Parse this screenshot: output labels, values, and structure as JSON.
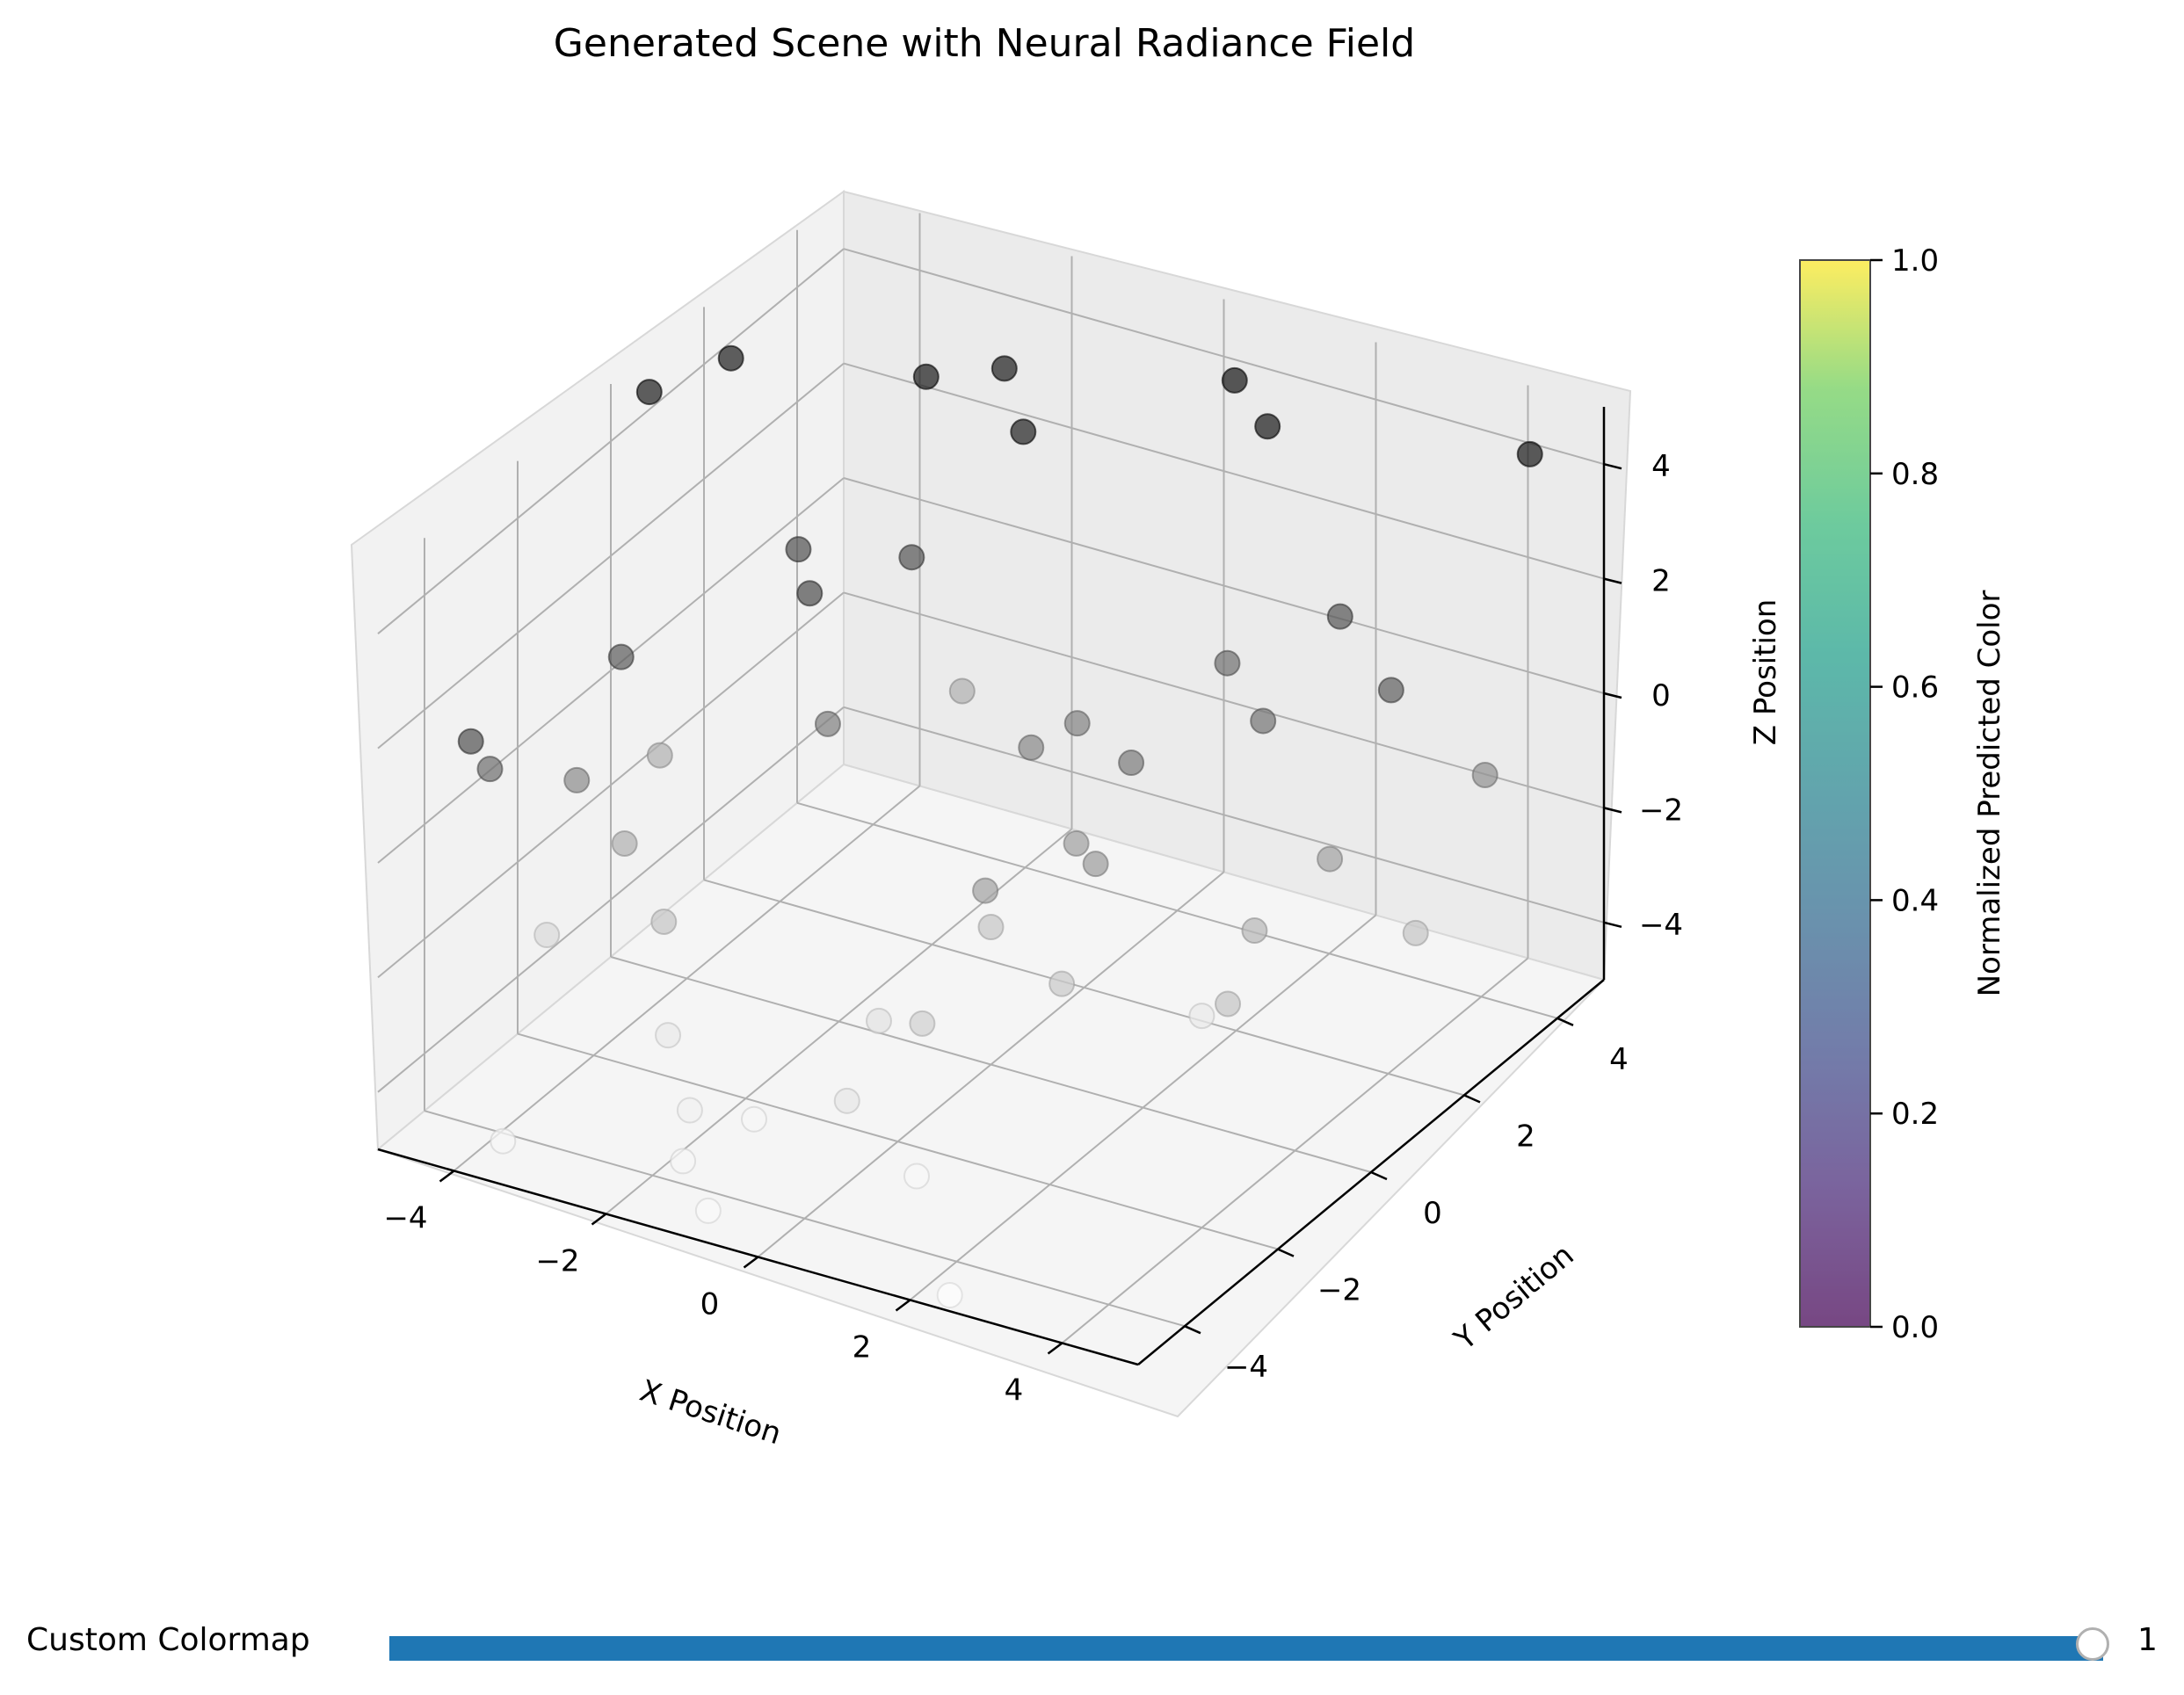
{
  "chart_data": {
    "type": "scatter3d",
    "title": "Generated Scene with Neural Radiance Field",
    "xlabel": "X Position",
    "ylabel": "Y Position",
    "zlabel": "Z Position",
    "xlim": [
      -5,
      5
    ],
    "ylim": [
      -5,
      5
    ],
    "zlim": [
      -5,
      5
    ],
    "xticks": [
      -4,
      -2,
      0,
      2,
      4
    ],
    "yticks": [
      -4,
      -2,
      0,
      2,
      4
    ],
    "zticks": [
      -4,
      -2,
      0,
      2,
      4
    ],
    "grid": true,
    "marker_color_encoding": "grayscale by z (dark = high z)",
    "points": [
      {
        "x": -4.8,
        "y": 0.5,
        "z": 4.6
      },
      {
        "x": -4.4,
        "y": 1.6,
        "z": 4.6
      },
      {
        "x": -2.2,
        "y": 2.2,
        "z": 4.7
      },
      {
        "x": -1.6,
        "y": 2.9,
        "z": 4.6
      },
      {
        "x": -0.8,
        "y": 2.0,
        "z": 4.4
      },
      {
        "x": 1.0,
        "y": 3.6,
        "z": 4.9
      },
      {
        "x": 1.8,
        "y": 3.0,
        "z": 4.8
      },
      {
        "x": 4.7,
        "y": 3.9,
        "z": 4.8
      },
      {
        "x": 3.0,
        "y": 2.6,
        "z": 2.2
      },
      {
        "x": 4.1,
        "y": 1.9,
        "z": 1.8
      },
      {
        "x": 1.7,
        "y": 2.3,
        "z": 1.1
      },
      {
        "x": 2.6,
        "y": 1.6,
        "z": 0.9
      },
      {
        "x": 4.6,
        "y": 3.1,
        "z": -0.3
      },
      {
        "x": 3.6,
        "y": 1.4,
        "z": -1.0
      },
      {
        "x": -3.9,
        "y": -4.8,
        "z": 2.4
      },
      {
        "x": -3.7,
        "y": -1.9,
        "z": 2.0
      },
      {
        "x": -2.9,
        "y": 0.6,
        "z": 2.5
      },
      {
        "x": -2.2,
        "y": -0.3,
        "z": 2.6
      },
      {
        "x": -1.9,
        "y": 1.4,
        "z": 2.2
      },
      {
        "x": -1.9,
        "y": -0.4,
        "z": 0.5
      },
      {
        "x": 0.1,
        "y": 0.7,
        "z": 0.1
      },
      {
        "x": 0.4,
        "y": 1.2,
        "z": 0.3
      },
      {
        "x": 1.6,
        "y": 0.4,
        "z": 0.6
      },
      {
        "x": -4.1,
        "y": -2.2,
        "z": -0.1
      },
      {
        "x": -4.2,
        "y": -3.9,
        "z": 1.2
      },
      {
        "x": 0.6,
        "y": -1.1,
        "z": -1.0
      },
      {
        "x": 1.5,
        "y": -0.2,
        "z": -0.8
      },
      {
        "x": 1.0,
        "y": 0.2,
        "z": -0.9
      },
      {
        "x": 3.1,
        "y": 0.6,
        "z": -1.9
      },
      {
        "x": 4.3,
        "y": 2.1,
        "z": -2.5
      },
      {
        "x": 3.3,
        "y": -0.3,
        "z": -2.5
      },
      {
        "x": -2.4,
        "y": 3.3,
        "z": -1.6
      },
      {
        "x": -4.6,
        "y": 0.4,
        "z": -1.6
      },
      {
        "x": -3.9,
        "y": -1.5,
        "z": -1.6
      },
      {
        "x": -3.2,
        "y": -1.8,
        "z": -2.5
      },
      {
        "x": -4.8,
        "y": -1.7,
        "z": -3.4
      },
      {
        "x": 0.2,
        "y": -1.8,
        "z": -3.0
      },
      {
        "x": 0.0,
        "y": 0.0,
        "z": -2.6
      },
      {
        "x": 1.3,
        "y": -0.6,
        "z": -2.7
      },
      {
        "x": -0.8,
        "y": -1.1,
        "z": -3.8
      },
      {
        "x": -2.9,
        "y": -2.2,
        "z": -4.1
      },
      {
        "x": -2.0,
        "y": -3.2,
        "z": -4.4
      },
      {
        "x": -1.4,
        "y": -2.8,
        "z": -4.6
      },
      {
        "x": -0.3,
        "y": -2.6,
        "z": -4.0
      },
      {
        "x": 0.8,
        "y": -2.9,
        "z": -4.7
      },
      {
        "x": 2.1,
        "y": 1.1,
        "z": -4.1
      },
      {
        "x": -3.6,
        "y": -4.6,
        "z": -4.6
      },
      {
        "x": -1.6,
        "y": -4.0,
        "z": -4.6
      },
      {
        "x": -0.9,
        "y": -4.6,
        "z": -4.8
      },
      {
        "x": 2.4,
        "y": -4.8,
        "z": -4.9
      }
    ],
    "colorbar": {
      "label": "Normalized Predicted Color",
      "min": 0.0,
      "max": 1.0,
      "ticks": [
        "0.0",
        "0.2",
        "0.4",
        "0.6",
        "0.8",
        "1.0"
      ],
      "colormap": "viridis"
    }
  },
  "slider": {
    "label": "Custom Colormap",
    "value": "1",
    "fraction": 1.0
  }
}
